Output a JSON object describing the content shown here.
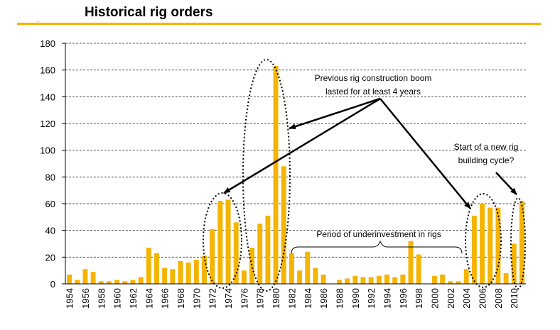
{
  "title": "Historical rig orders",
  "colors": {
    "bar": "#f5b400",
    "accent_rule": "#f5b400",
    "grid": "#555555",
    "text": "#000000"
  },
  "chart_data": {
    "type": "bar",
    "title": "Historical rig orders",
    "xlabel": "",
    "ylabel": "",
    "ylim": [
      0,
      180
    ],
    "yticks": [
      0,
      20,
      40,
      60,
      80,
      100,
      120,
      140,
      160,
      180
    ],
    "grid": true,
    "categories": [
      1954,
      1955,
      1956,
      1957,
      1958,
      1959,
      1960,
      1961,
      1962,
      1963,
      1964,
      1965,
      1966,
      1967,
      1968,
      1969,
      1970,
      1971,
      1972,
      1973,
      1974,
      1975,
      1976,
      1977,
      1978,
      1979,
      1980,
      1981,
      1982,
      1983,
      1984,
      1985,
      1986,
      1987,
      1988,
      1989,
      1990,
      1991,
      1992,
      1993,
      1994,
      1995,
      1996,
      1997,
      1998,
      1999,
      2000,
      2001,
      2002,
      2003,
      2004,
      2005,
      2006,
      2007,
      2008,
      2009,
      2010,
      2011
    ],
    "xtick_labels": [
      "1954",
      "1956",
      "1958",
      "1960",
      "1962",
      "1964",
      "1966",
      "1968",
      "1970",
      "1972",
      "1974",
      "1976",
      "1978",
      "1980",
      "1982",
      "1984",
      "1986",
      "1988",
      "1990",
      "1992",
      "1994",
      "1996",
      "1998",
      "2000",
      "2002",
      "2004",
      "2006",
      "2008",
      "2010"
    ],
    "values": [
      7,
      3,
      11,
      9,
      2,
      2,
      3,
      2,
      3,
      5,
      27,
      23,
      12,
      11,
      17,
      16,
      18,
      21,
      41,
      62,
      63,
      46,
      10,
      27,
      45,
      51,
      163,
      88,
      23,
      10,
      24,
      12,
      7,
      0,
      3,
      4,
      6,
      5,
      5,
      6,
      7,
      5,
      7,
      32,
      22,
      0,
      6,
      7,
      2,
      2,
      11,
      51,
      60,
      57,
      57,
      8,
      30,
      62
    ],
    "annotations": [
      {
        "id": "boom",
        "text_lines": [
          "Previous rig construction boom",
          "lasted for at least 4 years"
        ]
      },
      {
        "id": "new_cycle",
        "text_lines": [
          "Start of a new rig",
          "building cycle?"
        ]
      },
      {
        "id": "underinvestment",
        "text_lines": [
          "Period of underinvestment in rigs"
        ]
      }
    ]
  }
}
